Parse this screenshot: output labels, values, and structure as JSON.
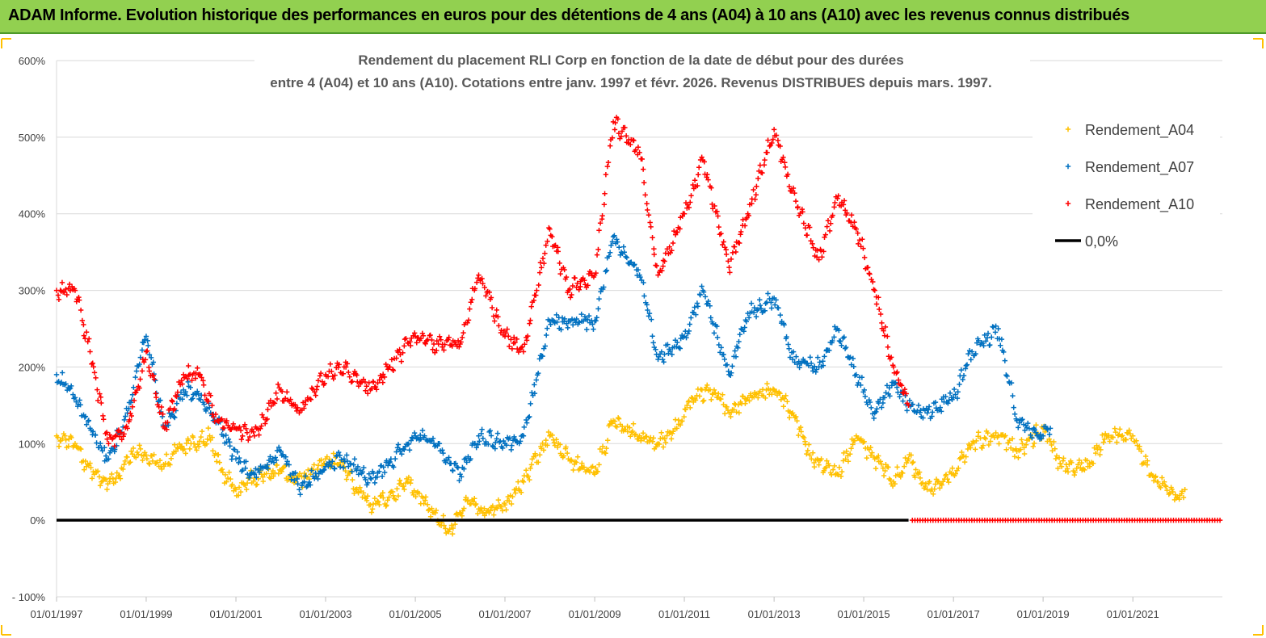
{
  "banner": {
    "text": "ADAM Informe. Evolution historique des performances en euros pour des détentions de 4 ans (A04) à 10 ans (A10) avec les revenus connus distribués"
  },
  "colors": {
    "banner_bg": "#92d050",
    "A04": "#ffc000",
    "A07": "#0070c0",
    "A10": "#ff0000",
    "zero_line": "#000000",
    "grid": "#d9d9d9"
  },
  "chart_data": {
    "type": "scatter",
    "title_lines": [
      "Rendement du placement RLI Corp en fonction de la date de début pour des durées",
      "entre 4 (A04) et 10 ans (A10). Cotations entre janv. 1997 et févr. 2026. Revenus DISTRIBUES depuis mars. 1997."
    ],
    "xlabel": "",
    "ylabel": "",
    "xlim": [
      "1997-01-01",
      "2022-12-31"
    ],
    "ylim": [
      -100,
      600
    ],
    "y_ticks": [
      "- 100%",
      "0%",
      "100%",
      "200%",
      "300%",
      "400%",
      "500%",
      "600%"
    ],
    "y_tick_values": [
      -100,
      0,
      100,
      200,
      300,
      400,
      500,
      600
    ],
    "x_ticks": [
      "01/01/1997",
      "01/01/1999",
      "01/01/2001",
      "01/01/2003",
      "01/01/2005",
      "01/01/2007",
      "01/01/2009",
      "01/01/2011",
      "01/01/2013",
      "01/01/2015",
      "01/01/2017",
      "01/01/2019",
      "01/01/2021"
    ],
    "x_tick_dates": [
      "1997-01-01",
      "1999-01-01",
      "2001-01-01",
      "2003-01-01",
      "2005-01-01",
      "2007-01-01",
      "2009-01-01",
      "2011-01-01",
      "2013-01-01",
      "2015-01-01",
      "2017-01-01",
      "2019-01-01",
      "2021-01-01"
    ],
    "grid": "horizontal",
    "legend_position": "top-right",
    "series": [
      {
        "name": "Rendement_A04",
        "marker": "+",
        "color": "#ffc000",
        "points": [
          [
            "1997-01-01",
            110
          ],
          [
            "1997-06-01",
            100
          ],
          [
            "1997-09-01",
            70
          ],
          [
            "1998-01-01",
            50
          ],
          [
            "1998-05-01",
            55
          ],
          [
            "1998-09-01",
            90
          ],
          [
            "1999-01-01",
            85
          ],
          [
            "1999-05-01",
            70
          ],
          [
            "1999-09-01",
            90
          ],
          [
            "2000-01-01",
            100
          ],
          [
            "2000-06-01",
            110
          ],
          [
            "2000-09-01",
            65
          ],
          [
            "2001-01-01",
            40
          ],
          [
            "2001-06-01",
            55
          ],
          [
            "2002-01-01",
            65
          ],
          [
            "2002-05-01",
            50
          ],
          [
            "2002-09-01",
            60
          ],
          [
            "2003-01-01",
            80
          ],
          [
            "2003-06-01",
            70
          ],
          [
            "2003-09-01",
            40
          ],
          [
            "2004-01-01",
            20
          ],
          [
            "2004-06-01",
            30
          ],
          [
            "2004-11-01",
            50
          ],
          [
            "2005-06-01",
            10
          ],
          [
            "2005-10-01",
            -15
          ],
          [
            "2006-03-01",
            25
          ],
          [
            "2006-08-01",
            10
          ],
          [
            "2007-01-01",
            20
          ],
          [
            "2007-06-01",
            50
          ],
          [
            "2008-01-01",
            110
          ],
          [
            "2008-06-01",
            80
          ],
          [
            "2009-01-01",
            60
          ],
          [
            "2009-06-01",
            130
          ],
          [
            "2010-01-01",
            110
          ],
          [
            "2010-06-01",
            100
          ],
          [
            "2010-11-01",
            120
          ],
          [
            "2011-03-01",
            160
          ],
          [
            "2011-09-01",
            170
          ],
          [
            "2012-01-01",
            140
          ],
          [
            "2012-06-01",
            160
          ],
          [
            "2013-01-01",
            170
          ],
          [
            "2013-06-01",
            140
          ],
          [
            "2013-11-01",
            80
          ],
          [
            "2014-06-01",
            60
          ],
          [
            "2014-11-01",
            110
          ],
          [
            "2015-04-01",
            80
          ],
          [
            "2015-09-01",
            50
          ],
          [
            "2016-01-01",
            80
          ],
          [
            "2016-06-01",
            40
          ],
          [
            "2017-01-01",
            60
          ],
          [
            "2017-06-01",
            100
          ],
          [
            "2018-01-01",
            110
          ],
          [
            "2018-06-01",
            90
          ],
          [
            "2019-01-01",
            120
          ],
          [
            "2019-06-01",
            70
          ],
          [
            "2020-01-01",
            70
          ],
          [
            "2020-06-01",
            110
          ],
          [
            "2021-01-01",
            110
          ],
          [
            "2021-06-01",
            60
          ],
          [
            "2022-01-01",
            30
          ],
          [
            "2022-03-01",
            40
          ]
        ]
      },
      {
        "name": "Rendement_A07",
        "marker": "+",
        "color": "#0070c0",
        "points": [
          [
            "1997-01-01",
            190
          ],
          [
            "1997-06-01",
            160
          ],
          [
            "1997-10-01",
            120
          ],
          [
            "1998-03-01",
            80
          ],
          [
            "1998-08-01",
            140
          ],
          [
            "1999-01-01",
            240
          ],
          [
            "1999-06-01",
            120
          ],
          [
            "1999-11-01",
            170
          ],
          [
            "2000-03-01",
            165
          ],
          [
            "2000-08-01",
            130
          ],
          [
            "2001-01-01",
            80
          ],
          [
            "2001-06-01",
            60
          ],
          [
            "2002-01-01",
            90
          ],
          [
            "2002-06-01",
            40
          ],
          [
            "2003-01-01",
            70
          ],
          [
            "2003-06-01",
            80
          ],
          [
            "2004-01-01",
            55
          ],
          [
            "2004-06-01",
            75
          ],
          [
            "2005-01-01",
            110
          ],
          [
            "2005-06-01",
            100
          ],
          [
            "2006-01-01",
            60
          ],
          [
            "2006-06-01",
            110
          ],
          [
            "2007-01-01",
            100
          ],
          [
            "2007-06-01",
            110
          ],
          [
            "2008-01-01",
            260
          ],
          [
            "2008-06-01",
            260
          ],
          [
            "2009-01-01",
            260
          ],
          [
            "2009-06-01",
            370
          ],
          [
            "2010-01-01",
            320
          ],
          [
            "2010-06-01",
            210
          ],
          [
            "2011-01-01",
            240
          ],
          [
            "2011-06-01",
            300
          ],
          [
            "2012-01-01",
            190
          ],
          [
            "2012-06-01",
            270
          ],
          [
            "2013-01-01",
            290
          ],
          [
            "2013-06-01",
            210
          ],
          [
            "2014-01-01",
            200
          ],
          [
            "2014-06-01",
            250
          ],
          [
            "2014-11-01",
            190
          ],
          [
            "2015-04-01",
            140
          ],
          [
            "2015-09-01",
            180
          ],
          [
            "2016-01-01",
            150
          ],
          [
            "2016-06-01",
            140
          ],
          [
            "2017-01-01",
            160
          ],
          [
            "2017-06-01",
            220
          ],
          [
            "2018-01-01",
            250
          ],
          [
            "2018-06-01",
            130
          ],
          [
            "2019-01-01",
            110
          ],
          [
            "2019-03-01",
            120
          ]
        ]
      },
      {
        "name": "Rendement_A10",
        "marker": "+",
        "color": "#ff0000",
        "points": [
          [
            "1997-01-01",
            300
          ],
          [
            "1997-06-01",
            300
          ],
          [
            "1997-10-01",
            220
          ],
          [
            "1998-03-01",
            100
          ],
          [
            "1998-08-01",
            120
          ],
          [
            "1999-01-01",
            220
          ],
          [
            "1999-06-01",
            120
          ],
          [
            "1999-11-01",
            190
          ],
          [
            "2000-03-01",
            190
          ],
          [
            "2000-08-01",
            130
          ],
          [
            "2001-01-01",
            120
          ],
          [
            "2001-06-01",
            110
          ],
          [
            "2002-01-01",
            170
          ],
          [
            "2002-06-01",
            140
          ],
          [
            "2003-01-01",
            190
          ],
          [
            "2003-06-01",
            200
          ],
          [
            "2004-01-01",
            170
          ],
          [
            "2004-06-01",
            200
          ],
          [
            "2005-01-01",
            240
          ],
          [
            "2005-06-01",
            230
          ],
          [
            "2006-01-01",
            230
          ],
          [
            "2006-06-01",
            320
          ],
          [
            "2007-01-01",
            240
          ],
          [
            "2007-06-01",
            220
          ],
          [
            "2008-01-01",
            380
          ],
          [
            "2008-06-01",
            300
          ],
          [
            "2009-01-01",
            320
          ],
          [
            "2009-06-01",
            520
          ],
          [
            "2010-01-01",
            480
          ],
          [
            "2010-06-01",
            320
          ],
          [
            "2011-01-01",
            400
          ],
          [
            "2011-06-01",
            470
          ],
          [
            "2012-01-01",
            330
          ],
          [
            "2012-06-01",
            400
          ],
          [
            "2013-01-01",
            510
          ],
          [
            "2013-06-01",
            430
          ],
          [
            "2014-01-01",
            340
          ],
          [
            "2014-06-01",
            420
          ],
          [
            "2014-11-01",
            380
          ],
          [
            "2015-04-01",
            300
          ],
          [
            "2015-09-01",
            200
          ],
          [
            "2016-01-01",
            150
          ]
        ]
      },
      {
        "name": "0,0%",
        "marker": "line",
        "color": "#000000",
        "points": [
          [
            "1997-01-01",
            0
          ],
          [
            "2016-01-01",
            0
          ]
        ]
      }
    ],
    "annotations": [
      "A10 values shown at 0% (red markers) from 2016 to end of period"
    ]
  }
}
